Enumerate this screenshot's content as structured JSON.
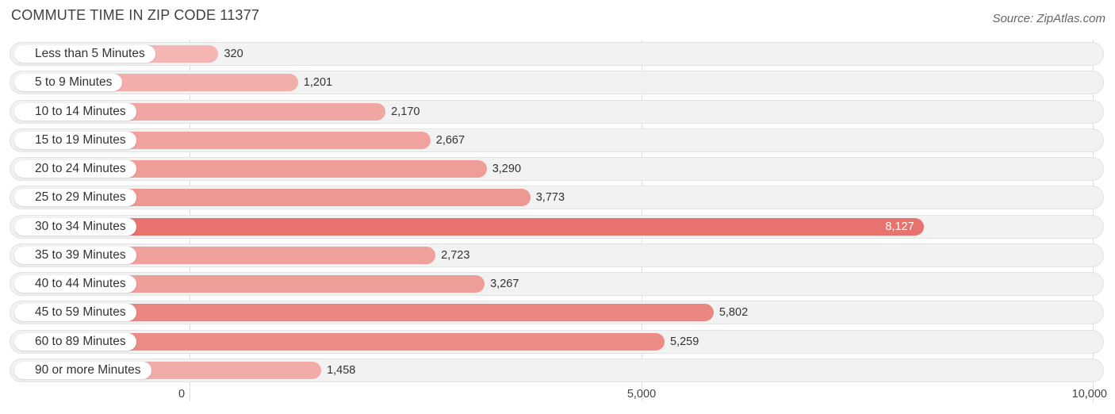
{
  "title": "COMMUTE TIME IN ZIP CODE 11377",
  "source": "Source: ZipAtlas.com",
  "chart_data": {
    "type": "bar",
    "orientation": "horizontal",
    "title": "COMMUTE TIME IN ZIP CODE 11377",
    "xlabel": "",
    "ylabel": "",
    "xlim": [
      0,
      10000
    ],
    "ticks": [
      0,
      5000,
      10000
    ],
    "tick_labels": [
      "0",
      "5,000",
      "10,000"
    ],
    "categories": [
      "Less than 5 Minutes",
      "5 to 9 Minutes",
      "10 to 14 Minutes",
      "15 to 19 Minutes",
      "20 to 24 Minutes",
      "25 to 29 Minutes",
      "30 to 34 Minutes",
      "35 to 39 Minutes",
      "40 to 44 Minutes",
      "45 to 59 Minutes",
      "60 to 89 Minutes",
      "90 or more Minutes"
    ],
    "values": [
      320,
      1201,
      2170,
      2667,
      3290,
      3773,
      8127,
      2723,
      3267,
      5802,
      5259,
      1458
    ],
    "value_labels": [
      "320",
      "1,201",
      "2,170",
      "2,667",
      "3,290",
      "3,773",
      "8,127",
      "2,723",
      "3,267",
      "5,802",
      "5,259",
      "1,458"
    ],
    "colors": {
      "max": "#e8736e",
      "min": "#f3b6b3"
    }
  }
}
